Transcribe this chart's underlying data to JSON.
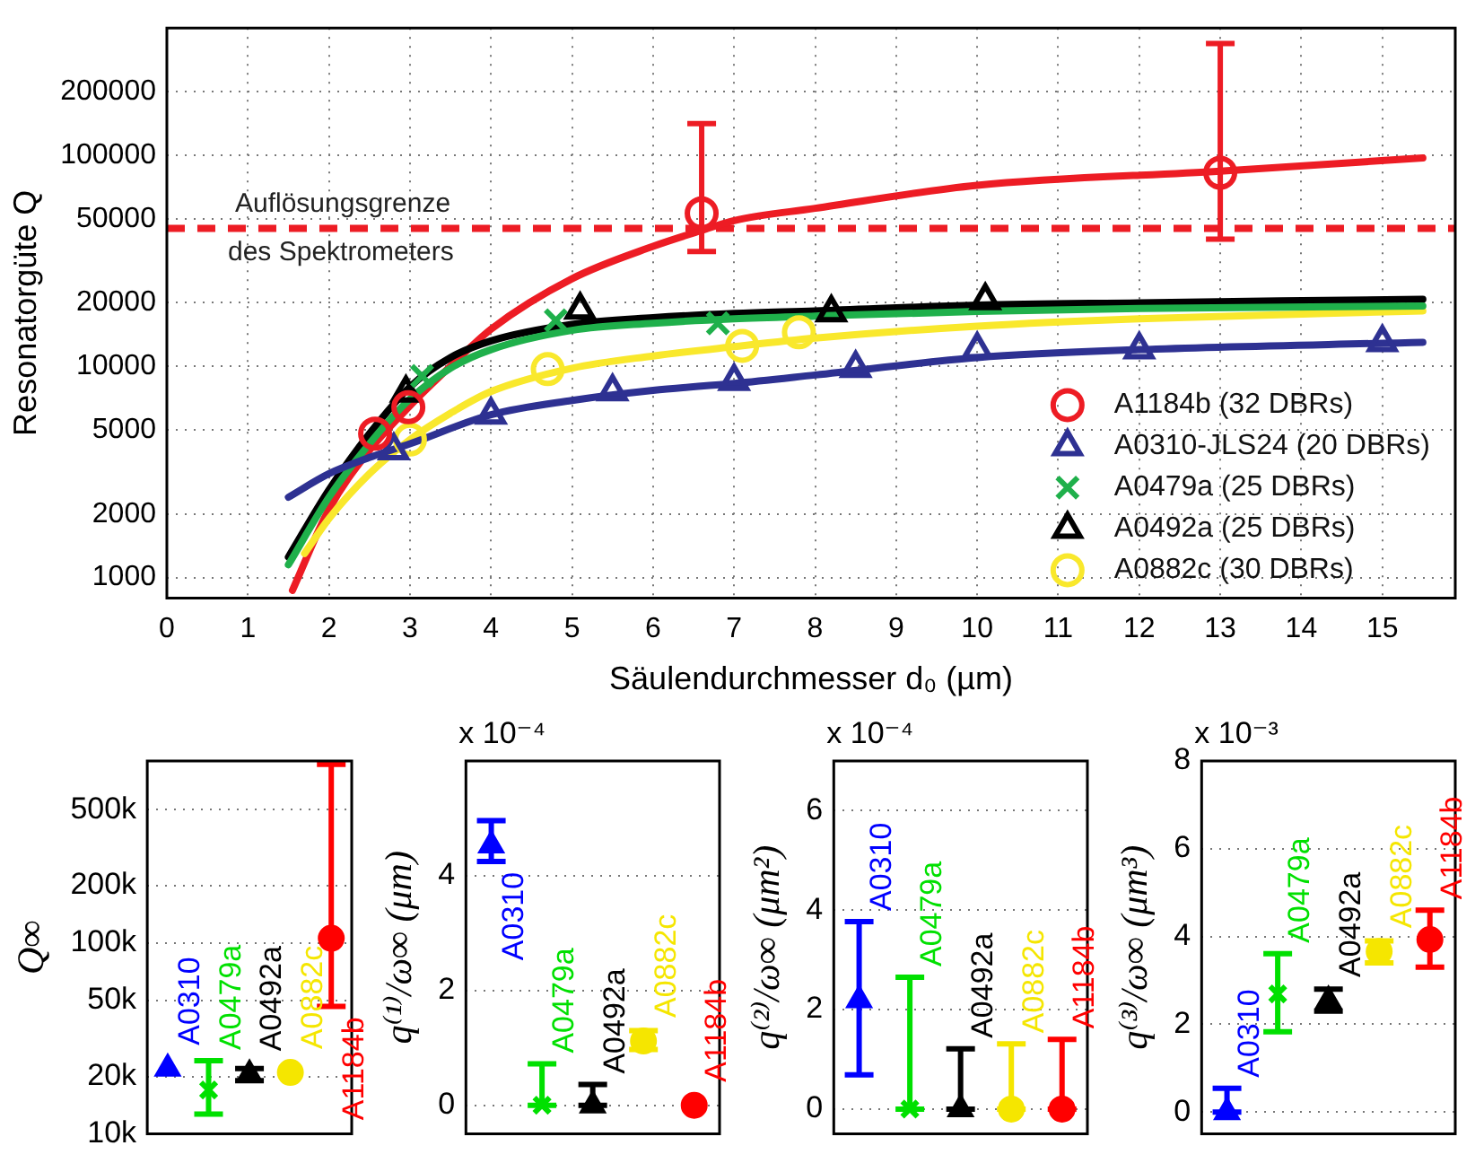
{
  "chart_data": [
    {
      "type": "scatter",
      "xlabel": "Säulendurchmesser d₀ (µm)",
      "ylabel": "Resonatorgüte Q",
      "xlim": [
        0,
        15.9
      ],
      "xticks": [
        0,
        1,
        2,
        3,
        4,
        5,
        6,
        7,
        8,
        9,
        10,
        11,
        12,
        13,
        14,
        15
      ],
      "ylim": [
        800,
        400000
      ],
      "yticks": [
        1000,
        2000,
        5000,
        10000,
        20000,
        50000,
        100000,
        200000
      ],
      "log": "y",
      "grid": true,
      "legend": "bottom right",
      "ref_lines": [
        {
          "axis": "y",
          "value": 45000,
          "label": "Auflösungsgrenze des Spektrometers",
          "color": "#ed1c24",
          "line_style": "dashed"
        }
      ],
      "series": [
        {
          "name": "A1184b (32 DBRs)",
          "color": "#ed1c24",
          "marker": "circle",
          "x": [
            2.57,
            2.98,
            6.6,
            13
          ],
          "values": [
            4800,
            6400,
            53000,
            82500
          ],
          "errors": [
            null,
            null,
            [
              35000,
              141000
            ],
            [
              40000,
              338000
            ]
          ]
        },
        {
          "name": "A0310-JLS24 (20 DBRs)",
          "color": "#2e3192",
          "marker": "triangle",
          "x": [
            2.8,
            4,
            5.5,
            7,
            8.5,
            10,
            12,
            15
          ],
          "values": [
            4000,
            5900,
            7600,
            8500,
            9800,
            12000,
            12000,
            13000
          ]
        },
        {
          "name": "A0479a (25 DBRs)",
          "color": "#1fb04b",
          "marker": "cross",
          "x": [
            3.15,
            4.8,
            6.8
          ],
          "values": [
            9000,
            16500,
            16000
          ]
        },
        {
          "name": "A0492a (25 DBRs)",
          "color": "#000000",
          "marker": "triangle",
          "x": [
            2.95,
            5.1,
            8.2,
            10.1
          ],
          "values": [
            7500,
            18500,
            18000,
            20500
          ]
        },
        {
          "name": "A0882c (30 DBRs)",
          "color": "#f9e82c",
          "marker": "circle",
          "x": [
            3.0,
            4.7,
            7.1,
            7.8
          ],
          "values": [
            4500,
            9700,
            12500,
            14500
          ]
        },
        {
          "type": "line",
          "color": "#2e3192",
          "x": [
            1.5,
            2,
            2.5,
            3,
            4,
            5,
            6,
            7,
            8,
            10,
            12,
            15.5
          ],
          "values": [
            2400,
            3100,
            3700,
            4300,
            5900,
            6900,
            7700,
            8300,
            9100,
            11000,
            12000,
            13000
          ]
        },
        {
          "type": "line",
          "color": "#1fb04b",
          "x": [
            1.5,
            2,
            2.5,
            3,
            3.5,
            4,
            5,
            6,
            7,
            8,
            10,
            12,
            15.5
          ],
          "values": [
            1150,
            2400,
            4300,
            7000,
            9800,
            12000,
            14800,
            16000,
            16800,
            17300,
            18200,
            18800,
            19300
          ]
        },
        {
          "type": "line",
          "color": "#f9e82c",
          "x": [
            1.7,
            2,
            2.5,
            3,
            3.5,
            4,
            5,
            6,
            7,
            8,
            10,
            12,
            15.5
          ],
          "values": [
            1300,
            1900,
            3100,
            4500,
            6000,
            7600,
            9800,
            11200,
            12400,
            13600,
            15500,
            16800,
            18300
          ]
        },
        {
          "type": "line",
          "color": "#000000",
          "x": [
            1.5,
            2,
            2.5,
            3,
            3.5,
            4,
            5,
            6,
            7,
            8,
            10,
            12,
            15.5
          ],
          "values": [
            1250,
            2600,
            4800,
            8000,
            11000,
            13200,
            15800,
            17000,
            17800,
            18300,
            19500,
            20000,
            20800
          ]
        },
        {
          "type": "line",
          "color": "#ed1c24",
          "x": [
            1.55,
            2,
            2.5,
            3,
            3.5,
            4,
            5,
            6,
            6.6,
            7,
            8,
            10,
            13,
            15.5
          ],
          "values": [
            870,
            2100,
            4000,
            6500,
            10000,
            15000,
            26000,
            37000,
            44000,
            49000,
            56000,
            72000,
            84000,
            97000
          ]
        }
      ]
    },
    {
      "type": "scatter",
      "ylabel": "Q∞",
      "categories": [
        null,
        null,
        null,
        null,
        null
      ],
      "log": "y",
      "ylim": [
        10000,
        900000
      ],
      "yticks": [
        {
          "value": 10000,
          "label": "10k"
        },
        {
          "value": 20000,
          "label": "20k"
        },
        {
          "value": 50000,
          "label": "50k"
        },
        {
          "value": 100000,
          "label": "100k"
        },
        {
          "value": 200000,
          "label": "200k"
        },
        {
          "value": 500000,
          "label": "500k"
        }
      ],
      "grid": "y",
      "tick_labels": "y",
      "series": [
        {
          "name": "A0310",
          "color": "#0000ff",
          "marker": "triangle",
          "values": [
            22000,
            null,
            null,
            null,
            null
          ]
        },
        {
          "name": "A0479a",
          "color": "#00e000",
          "marker": "cross",
          "values": [
            null,
            17000,
            null,
            null,
            null
          ],
          "errors": [
            null,
            [
              12700,
              24200
            ],
            null,
            null,
            null
          ]
        },
        {
          "name": "A0492a",
          "color": "#000000",
          "marker": "triangle",
          "values": [
            null,
            null,
            20500,
            null,
            null
          ],
          "errors": [
            null,
            null,
            [
              19000,
              22000
            ],
            null,
            null
          ]
        },
        {
          "name": "A0882c",
          "color": "#f5e600",
          "marker": "circle",
          "values": [
            null,
            null,
            null,
            21000,
            null
          ]
        },
        {
          "name": "A1184b",
          "color": "#ff0000",
          "marker": "circle",
          "values": [
            null,
            null,
            null,
            null,
            106000
          ],
          "errors": [
            null,
            null,
            null,
            null,
            [
              46600,
              865000
            ]
          ]
        }
      ]
    },
    {
      "type": "scatter",
      "ylabel": "q⁽¹⁾/ω∞ (μm)",
      "annotations": [
        "x 10⁻⁴"
      ],
      "categories": [
        null,
        null,
        null,
        null,
        null
      ],
      "ylim": [
        -0.5,
        6
      ],
      "yticks": [
        0,
        2,
        4
      ],
      "grid": "y",
      "tick_labels": "y",
      "series": [
        {
          "name": "A0310",
          "color": "#0000ff",
          "marker": "triangle",
          "values": [
            4.53,
            null,
            null,
            null,
            null
          ],
          "errors": [
            [
              4.25,
              4.96
            ],
            null,
            null,
            null,
            null
          ]
        },
        {
          "name": "A0479a",
          "color": "#00e000",
          "marker": "cross",
          "values": [
            null,
            0,
            null,
            null,
            null
          ],
          "errors": [
            null,
            [
              0,
              0.72
            ],
            null,
            null,
            null
          ]
        },
        {
          "name": "A0492a",
          "color": "#000000",
          "marker": "triangle",
          "values": [
            null,
            null,
            0,
            null,
            null
          ],
          "errors": [
            null,
            null,
            [
              0,
              0.36
            ],
            null,
            null
          ]
        },
        {
          "name": "A0882c",
          "color": "#f5e600",
          "marker": "circle",
          "values": [
            null,
            null,
            null,
            1.12,
            null
          ],
          "errors": [
            null,
            null,
            null,
            [
              0.97,
              1.3
            ],
            null
          ]
        },
        {
          "name": "A1184b",
          "color": "#ff0000",
          "marker": "circle",
          "values": [
            null,
            null,
            null,
            null,
            0
          ]
        }
      ]
    },
    {
      "type": "scatter",
      "ylabel": "q⁽²⁾/ω∞ (μm²)",
      "annotations": [
        "x 10⁻⁴"
      ],
      "categories": [
        null,
        null,
        null,
        null,
        null
      ],
      "ylim": [
        -0.5,
        7
      ],
      "yticks": [
        0,
        2,
        4,
        6
      ],
      "grid": "y",
      "tick_labels": "y",
      "series": [
        {
          "name": "A0310",
          "color": "#0000ff",
          "marker": "triangle",
          "values": [
            2.19,
            null,
            null,
            null,
            null
          ],
          "errors": [
            [
              0.69,
              3.77
            ],
            null,
            null,
            null,
            null
          ]
        },
        {
          "name": "A0479a",
          "color": "#00e000",
          "marker": "cross",
          "values": [
            null,
            0,
            null,
            null,
            null
          ],
          "errors": [
            null,
            [
              0,
              2.65
            ],
            null,
            null,
            null
          ]
        },
        {
          "name": "A0492a",
          "color": "#000000",
          "marker": "triangle",
          "values": [
            null,
            null,
            0,
            null,
            null
          ],
          "errors": [
            null,
            null,
            [
              0,
              1.21
            ],
            null,
            null
          ]
        },
        {
          "name": "A0882c",
          "color": "#f5e600",
          "marker": "circle",
          "values": [
            null,
            null,
            null,
            0,
            null
          ],
          "errors": [
            null,
            null,
            null,
            [
              0,
              1.31
            ],
            null
          ]
        },
        {
          "name": "A1184b",
          "color": "#ff0000",
          "marker": "circle",
          "values": [
            null,
            null,
            null,
            null,
            0
          ],
          "errors": [
            null,
            null,
            null,
            null,
            [
              0,
              1.4
            ]
          ]
        }
      ]
    },
    {
      "type": "scatter",
      "ylabel": "q⁽³⁾/ω∞ (μm³)",
      "annotations": [
        "x 10⁻³"
      ],
      "categories": [
        null,
        null,
        null,
        null,
        null
      ],
      "ylim": [
        -0.5,
        8
      ],
      "yticks": [
        0,
        2,
        4,
        6,
        8
      ],
      "grid": "y",
      "tick_labels": "y",
      "series": [
        {
          "name": "A0310",
          "color": "#0000ff",
          "marker": "triangle",
          "values": [
            0,
            null,
            null,
            null,
            null
          ],
          "errors": [
            [
              0,
              0.54
            ],
            null,
            null,
            null,
            null
          ]
        },
        {
          "name": "A0479a",
          "color": "#00e000",
          "marker": "cross",
          "values": [
            null,
            2.69,
            null,
            null,
            null
          ],
          "errors": [
            null,
            [
              1.83,
              3.61
            ],
            null,
            null,
            null
          ]
        },
        {
          "name": "A0492a",
          "color": "#000000",
          "marker": "triangle",
          "values": [
            null,
            null,
            2.54,
            null,
            null
          ],
          "errors": [
            null,
            null,
            [
              2.3,
              2.8
            ],
            null,
            null
          ]
        },
        {
          "name": "A0882c",
          "color": "#f5e600",
          "marker": "circle",
          "values": [
            null,
            null,
            null,
            3.66,
            null
          ],
          "errors": [
            null,
            null,
            null,
            [
              3.4,
              3.9
            ],
            null
          ]
        },
        {
          "name": "A1184b",
          "color": "#ff0000",
          "marker": "circle",
          "values": [
            null,
            null,
            null,
            null,
            3.93
          ],
          "errors": [
            null,
            null,
            null,
            null,
            [
              3.3,
              4.6
            ]
          ]
        }
      ]
    }
  ]
}
